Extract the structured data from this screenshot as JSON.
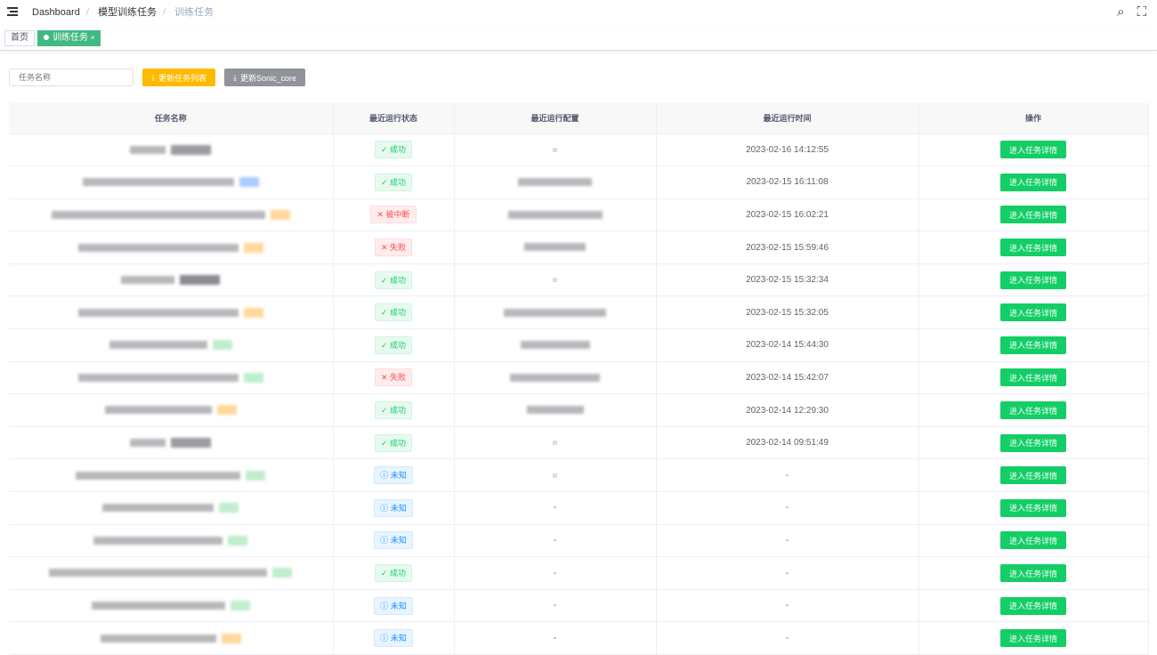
{
  "breadcrumb": [
    "Dashboard",
    "模型训练任务",
    "训练任务"
  ],
  "tags": {
    "home": "首页",
    "active": "训练任务",
    "close": "×"
  },
  "toolbar": {
    "search_placeholder": "任务名称",
    "refresh_list": "更新任务列表",
    "refresh_core": "更新Sonic_core"
  },
  "table": {
    "headers": [
      "任务名称",
      "最近运行状态",
      "最近运行配置",
      "最近运行时间",
      "操作"
    ],
    "action_label": "进入任务详情",
    "rows": [
      {
        "status": "success",
        "status_label": "成功",
        "config": "blur-dot",
        "time": "2023-02-16 14:12:55",
        "tag": "#9a9aa0",
        "w": 40
      },
      {
        "status": "success",
        "status_label": "成功",
        "config": "blur",
        "time": "2023-02-15 16:11:08",
        "tag": "#a9ccff",
        "w": 170
      },
      {
        "status": "fail",
        "status_label": "被中断",
        "config": "blur",
        "time": "2023-02-15 16:02:21",
        "tag": "#ffd89a",
        "w": 240
      },
      {
        "status": "fail",
        "status_label": "失败",
        "config": "blur",
        "time": "2023-02-15 15:59:46",
        "tag": "#ffd89a",
        "w": 180
      },
      {
        "status": "success",
        "status_label": "成功",
        "config": "blur-dot",
        "time": "2023-02-15 15:32:34",
        "tag": "#8a8a90",
        "w": 60
      },
      {
        "status": "success",
        "status_label": "成功",
        "config": "blur",
        "time": "2023-02-15 15:32:05",
        "tag": "#ffd89a",
        "w": 180
      },
      {
        "status": "success",
        "status_label": "成功",
        "config": "blur",
        "time": "2023-02-14 15:44:30",
        "tag": "#bfeecd",
        "w": 110
      },
      {
        "status": "fail",
        "status_label": "失败",
        "config": "blur",
        "time": "2023-02-14 15:42:07",
        "tag": "#bfeecd",
        "w": 180
      },
      {
        "status": "success",
        "status_label": "成功",
        "config": "blur",
        "time": "2023-02-14 12:29:30",
        "tag": "#ffd89a",
        "w": 120
      },
      {
        "status": "success",
        "status_label": "成功",
        "config": "blur-dot",
        "time": "2023-02-14 09:51:49",
        "tag": "#9a9aa0",
        "w": 40
      },
      {
        "status": "unknown",
        "status_label": "未知",
        "config": "blur-dot",
        "time": "-",
        "tag": "#bfeecd",
        "w": 185
      },
      {
        "status": "unknown",
        "status_label": "未知",
        "config": "-",
        "time": "-",
        "tag": "#bfeecd",
        "w": 125
      },
      {
        "status": "unknown",
        "status_label": "未知",
        "config": "-",
        "time": "-",
        "tag": "#bfeecd",
        "w": 145
      },
      {
        "status": "success",
        "status_label": "成功",
        "config": "-",
        "time": "-",
        "tag": "#bfeecd",
        "w": 245
      },
      {
        "status": "unknown",
        "status_label": "未知",
        "config": "-",
        "time": "-",
        "tag": "#bfeecd",
        "w": 150
      },
      {
        "status": "unknown",
        "status_label": "未知",
        "config": "-",
        "time": "-",
        "tag": "#ffd89a",
        "w": 130
      }
    ]
  },
  "colors": {
    "success": "#13ce66",
    "fail": "#ff4949",
    "unknown": "#1890ff",
    "warning": "#ffba00",
    "tag_active": "#42b983"
  }
}
